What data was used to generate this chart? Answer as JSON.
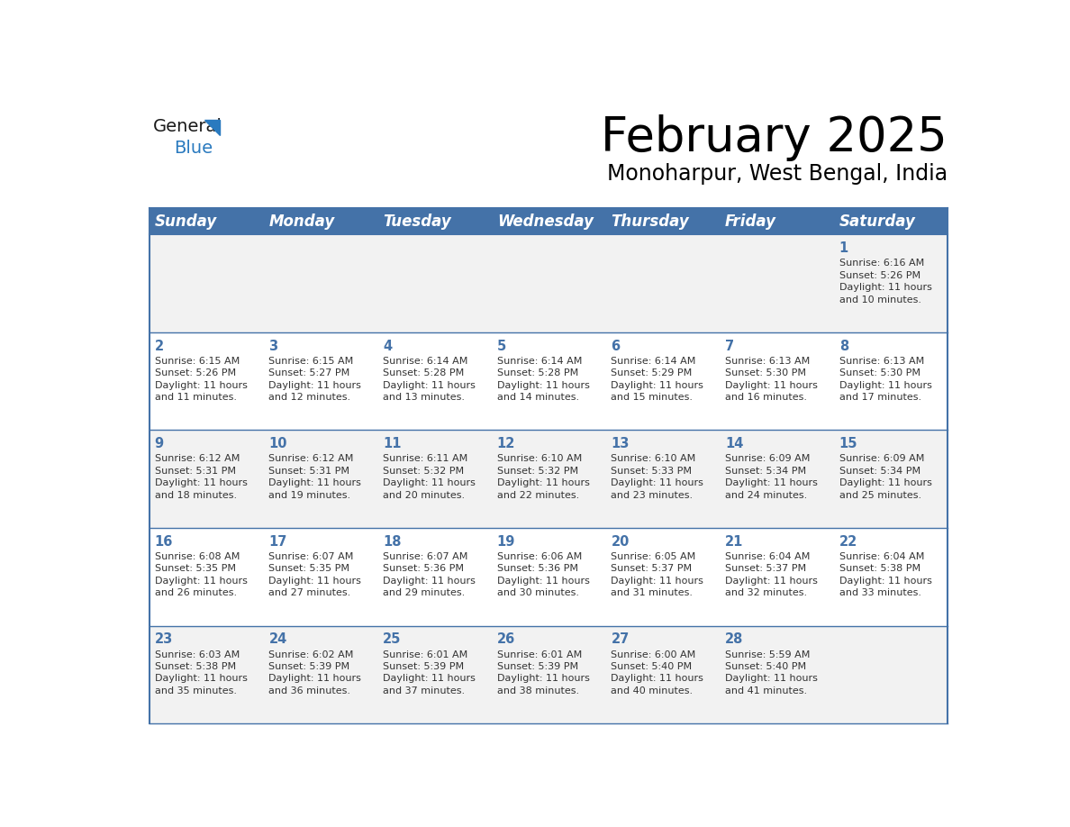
{
  "title": "February 2025",
  "subtitle": "Monoharpur, West Bengal, India",
  "header_bg_color": "#4472a8",
  "header_text_color": "#ffffff",
  "cell_bg_even": "#f2f2f2",
  "cell_bg_odd": "#ffffff",
  "day_headers": [
    "Sunday",
    "Monday",
    "Tuesday",
    "Wednesday",
    "Thursday",
    "Friday",
    "Saturday"
  ],
  "title_fontsize": 38,
  "subtitle_fontsize": 17,
  "header_fontsize": 12,
  "day_num_fontsize": 10.5,
  "cell_text_fontsize": 8,
  "days": [
    {
      "day": 1,
      "col": 6,
      "row": 0,
      "sunrise": "6:16 AM",
      "sunset": "5:26 PM",
      "daylight": "11 hours\nand 10 minutes."
    },
    {
      "day": 2,
      "col": 0,
      "row": 1,
      "sunrise": "6:15 AM",
      "sunset": "5:26 PM",
      "daylight": "11 hours\nand 11 minutes."
    },
    {
      "day": 3,
      "col": 1,
      "row": 1,
      "sunrise": "6:15 AM",
      "sunset": "5:27 PM",
      "daylight": "11 hours\nand 12 minutes."
    },
    {
      "day": 4,
      "col": 2,
      "row": 1,
      "sunrise": "6:14 AM",
      "sunset": "5:28 PM",
      "daylight": "11 hours\nand 13 minutes."
    },
    {
      "day": 5,
      "col": 3,
      "row": 1,
      "sunrise": "6:14 AM",
      "sunset": "5:28 PM",
      "daylight": "11 hours\nand 14 minutes."
    },
    {
      "day": 6,
      "col": 4,
      "row": 1,
      "sunrise": "6:14 AM",
      "sunset": "5:29 PM",
      "daylight": "11 hours\nand 15 minutes."
    },
    {
      "day": 7,
      "col": 5,
      "row": 1,
      "sunrise": "6:13 AM",
      "sunset": "5:30 PM",
      "daylight": "11 hours\nand 16 minutes."
    },
    {
      "day": 8,
      "col": 6,
      "row": 1,
      "sunrise": "6:13 AM",
      "sunset": "5:30 PM",
      "daylight": "11 hours\nand 17 minutes."
    },
    {
      "day": 9,
      "col": 0,
      "row": 2,
      "sunrise": "6:12 AM",
      "sunset": "5:31 PM",
      "daylight": "11 hours\nand 18 minutes."
    },
    {
      "day": 10,
      "col": 1,
      "row": 2,
      "sunrise": "6:12 AM",
      "sunset": "5:31 PM",
      "daylight": "11 hours\nand 19 minutes."
    },
    {
      "day": 11,
      "col": 2,
      "row": 2,
      "sunrise": "6:11 AM",
      "sunset": "5:32 PM",
      "daylight": "11 hours\nand 20 minutes."
    },
    {
      "day": 12,
      "col": 3,
      "row": 2,
      "sunrise": "6:10 AM",
      "sunset": "5:32 PM",
      "daylight": "11 hours\nand 22 minutes."
    },
    {
      "day": 13,
      "col": 4,
      "row": 2,
      "sunrise": "6:10 AM",
      "sunset": "5:33 PM",
      "daylight": "11 hours\nand 23 minutes."
    },
    {
      "day": 14,
      "col": 5,
      "row": 2,
      "sunrise": "6:09 AM",
      "sunset": "5:34 PM",
      "daylight": "11 hours\nand 24 minutes."
    },
    {
      "day": 15,
      "col": 6,
      "row": 2,
      "sunrise": "6:09 AM",
      "sunset": "5:34 PM",
      "daylight": "11 hours\nand 25 minutes."
    },
    {
      "day": 16,
      "col": 0,
      "row": 3,
      "sunrise": "6:08 AM",
      "sunset": "5:35 PM",
      "daylight": "11 hours\nand 26 minutes."
    },
    {
      "day": 17,
      "col": 1,
      "row": 3,
      "sunrise": "6:07 AM",
      "sunset": "5:35 PM",
      "daylight": "11 hours\nand 27 minutes."
    },
    {
      "day": 18,
      "col": 2,
      "row": 3,
      "sunrise": "6:07 AM",
      "sunset": "5:36 PM",
      "daylight": "11 hours\nand 29 minutes."
    },
    {
      "day": 19,
      "col": 3,
      "row": 3,
      "sunrise": "6:06 AM",
      "sunset": "5:36 PM",
      "daylight": "11 hours\nand 30 minutes."
    },
    {
      "day": 20,
      "col": 4,
      "row": 3,
      "sunrise": "6:05 AM",
      "sunset": "5:37 PM",
      "daylight": "11 hours\nand 31 minutes."
    },
    {
      "day": 21,
      "col": 5,
      "row": 3,
      "sunrise": "6:04 AM",
      "sunset": "5:37 PM",
      "daylight": "11 hours\nand 32 minutes."
    },
    {
      "day": 22,
      "col": 6,
      "row": 3,
      "sunrise": "6:04 AM",
      "sunset": "5:38 PM",
      "daylight": "11 hours\nand 33 minutes."
    },
    {
      "day": 23,
      "col": 0,
      "row": 4,
      "sunrise": "6:03 AM",
      "sunset": "5:38 PM",
      "daylight": "11 hours\nand 35 minutes."
    },
    {
      "day": 24,
      "col": 1,
      "row": 4,
      "sunrise": "6:02 AM",
      "sunset": "5:39 PM",
      "daylight": "11 hours\nand 36 minutes."
    },
    {
      "day": 25,
      "col": 2,
      "row": 4,
      "sunrise": "6:01 AM",
      "sunset": "5:39 PM",
      "daylight": "11 hours\nand 37 minutes."
    },
    {
      "day": 26,
      "col": 3,
      "row": 4,
      "sunrise": "6:01 AM",
      "sunset": "5:39 PM",
      "daylight": "11 hours\nand 38 minutes."
    },
    {
      "day": 27,
      "col": 4,
      "row": 4,
      "sunrise": "6:00 AM",
      "sunset": "5:40 PM",
      "daylight": "11 hours\nand 40 minutes."
    },
    {
      "day": 28,
      "col": 5,
      "row": 4,
      "sunrise": "5:59 AM",
      "sunset": "5:40 PM",
      "daylight": "11 hours\nand 41 minutes."
    }
  ],
  "num_rows": 5,
  "num_cols": 7,
  "border_color": "#4472a8",
  "line_color": "#4472a8",
  "text_color": "#333333",
  "logo_general_color": "#1a1a1a",
  "logo_blue_color": "#2a7abf"
}
